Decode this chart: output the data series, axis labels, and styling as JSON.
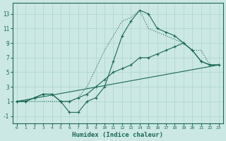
{
  "xlabel": "Humidex (Indice chaleur)",
  "bg_color": "#cce8e4",
  "grid_color": "#aad4cc",
  "line_color": "#1a6858",
  "xlim": [
    -0.5,
    23.5
  ],
  "ylim": [
    -2,
    14.5
  ],
  "xticks": [
    0,
    1,
    2,
    3,
    4,
    5,
    6,
    7,
    8,
    9,
    10,
    11,
    12,
    13,
    14,
    15,
    16,
    17,
    18,
    19,
    20,
    21,
    22,
    23
  ],
  "yticks": [
    -1,
    1,
    3,
    5,
    7,
    9,
    11,
    13
  ],
  "line_dotted": {
    "x": [
      0,
      1,
      2,
      3,
      4,
      5,
      6,
      7,
      8,
      9,
      10,
      11,
      12,
      13,
      14,
      15,
      16,
      17,
      18,
      19,
      20,
      21,
      22,
      23
    ],
    "y": [
      1,
      1,
      1,
      1,
      1,
      1,
      1,
      1.5,
      3,
      5.5,
      8,
      10,
      12,
      12.5,
      13.5,
      11,
      10.5,
      10,
      9.5,
      9,
      8,
      8,
      6,
      6
    ]
  },
  "line_marked_steep": {
    "x": [
      0,
      1,
      2,
      3,
      4,
      5,
      6,
      7,
      8,
      9,
      10,
      11,
      12,
      13,
      14,
      15,
      16,
      17,
      18,
      19,
      20,
      21,
      22,
      23
    ],
    "y": [
      1,
      1,
      1.5,
      2,
      2,
      1,
      -0.5,
      -0.5,
      1,
      1.5,
      3,
      6.5,
      10,
      12,
      13.5,
      13,
      11,
      10.5,
      10,
      9,
      8,
      6.5,
      6,
      6
    ]
  },
  "line_straight": {
    "x": [
      0,
      23
    ],
    "y": [
      1,
      6
    ]
  },
  "line_marked_moderate": {
    "x": [
      0,
      1,
      2,
      3,
      4,
      5,
      6,
      7,
      8,
      9,
      10,
      11,
      12,
      13,
      14,
      15,
      16,
      17,
      18,
      19,
      20,
      21,
      22,
      23
    ],
    "y": [
      1,
      1,
      1.5,
      2,
      2,
      1,
      1,
      1.5,
      2,
      3,
      4,
      5,
      5.5,
      6,
      7,
      7,
      7.5,
      8,
      8.5,
      9,
      8,
      6.5,
      6,
      6
    ]
  }
}
